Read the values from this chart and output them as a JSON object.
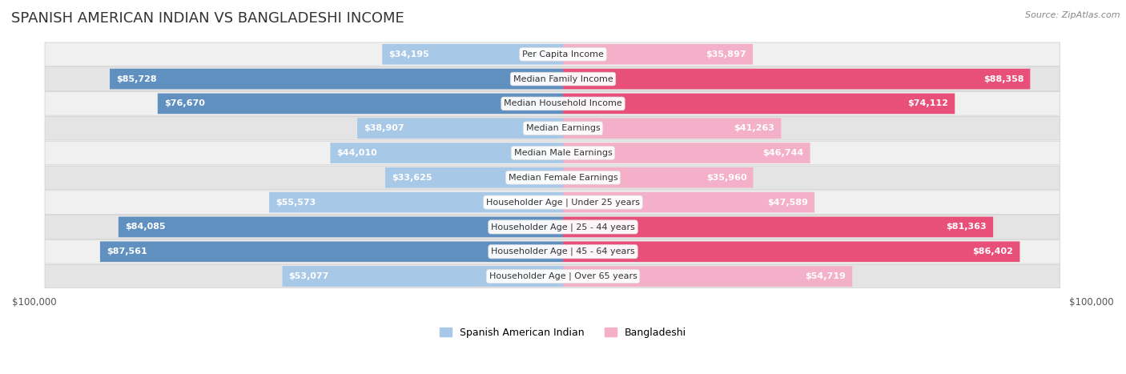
{
  "title": "SPANISH AMERICAN INDIAN VS BANGLADESHI INCOME",
  "source": "Source: ZipAtlas.com",
  "categories": [
    "Per Capita Income",
    "Median Family Income",
    "Median Household Income",
    "Median Earnings",
    "Median Male Earnings",
    "Median Female Earnings",
    "Householder Age | Under 25 years",
    "Householder Age | 25 - 44 years",
    "Householder Age | 45 - 64 years",
    "Householder Age | Over 65 years"
  ],
  "spanish_values": [
    34195,
    85728,
    76670,
    38907,
    44010,
    33625,
    55573,
    84085,
    87561,
    53077
  ],
  "bangladeshi_values": [
    35897,
    88358,
    74112,
    41263,
    46744,
    35960,
    47589,
    81363,
    86402,
    54719
  ],
  "spanish_labels": [
    "$34,195",
    "$85,728",
    "$76,670",
    "$38,907",
    "$44,010",
    "$33,625",
    "$55,573",
    "$84,085",
    "$87,561",
    "$53,077"
  ],
  "bangladeshi_labels": [
    "$35,897",
    "$88,358",
    "$74,112",
    "$41,263",
    "$46,744",
    "$35,960",
    "$47,589",
    "$81,363",
    "$86,402",
    "$54,719"
  ],
  "max_value": 100000,
  "spanish_color_light": "#a8c8e8",
  "spanish_color_dark": "#6090c0",
  "bangladeshi_color_light": "#f4b0c8",
  "bangladeshi_color_dark": "#e8507a",
  "bar_height": 0.52,
  "row_bg_light": "#f0f0f0",
  "row_bg_dark": "#e4e4e4",
  "title_fontsize": 13,
  "label_fontsize": 8,
  "category_fontsize": 8,
  "axis_label_fontsize": 8.5,
  "legend_fontsize": 9,
  "source_fontsize": 8,
  "figure_bg": "#ffffff",
  "inside_label_color": "#ffffff",
  "outside_label_color": "#555555",
  "threshold": 0.3
}
